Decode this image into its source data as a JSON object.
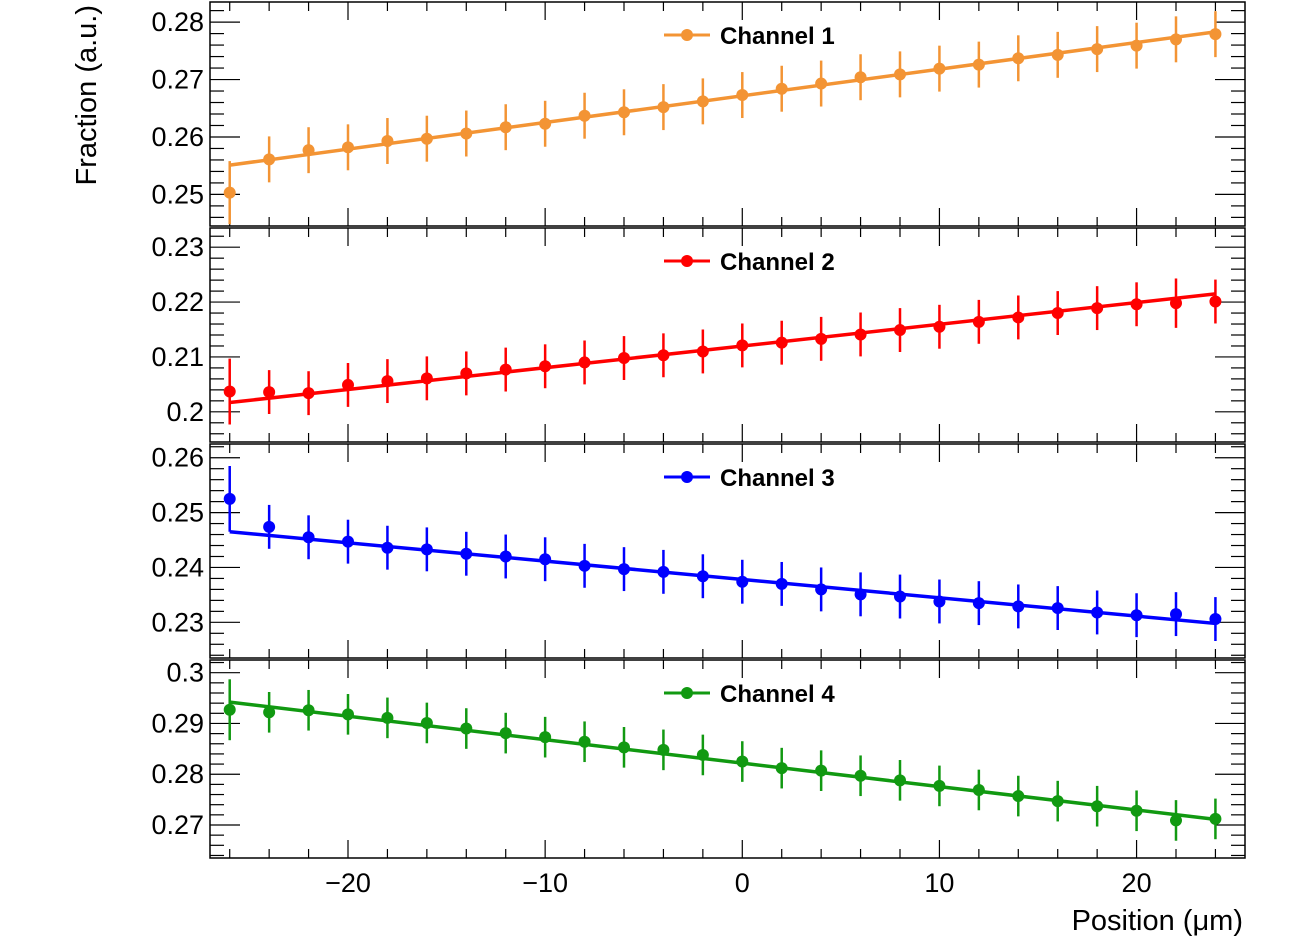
{
  "chart_data": {
    "type": "scatter",
    "layout": "stacked-panels",
    "shared_x": {
      "label": "Position (μm)",
      "range": [
        -27,
        25.5
      ],
      "ticks": [
        -20,
        -10,
        0,
        10,
        20
      ],
      "tick_labels": [
        "−20",
        "−10",
        "0",
        "10",
        "20"
      ]
    },
    "ylabel": "Fraction (a.u.)",
    "x": [
      -26,
      -24,
      -22,
      -20,
      -18,
      -16,
      -14,
      -12,
      -10,
      -8,
      -6,
      -4,
      -2,
      0,
      2,
      4,
      6,
      8,
      10,
      12,
      14,
      16,
      18,
      20,
      22,
      24
    ],
    "panels": [
      {
        "name": "Channel 1",
        "color": "#f39434",
        "ylim": [
          0.2445,
          0.2835
        ],
        "yticks": [
          0.25,
          0.26,
          0.27,
          0.28
        ],
        "ytick_labels": [
          "0.25",
          "0.26",
          "0.27",
          "0.28"
        ],
        "values": [
          0.2503,
          0.2561,
          0.2577,
          0.2582,
          0.2593,
          0.2597,
          0.2606,
          0.2617,
          0.2623,
          0.2637,
          0.2643,
          0.2652,
          0.2662,
          0.2673,
          0.2684,
          0.2693,
          0.2704,
          0.2709,
          0.2719,
          0.2726,
          0.2737,
          0.2743,
          0.2753,
          0.2759,
          0.277,
          0.2779
        ],
        "errors": [
          0.0055,
          0.004,
          0.004,
          0.004,
          0.004,
          0.004,
          0.004,
          0.004,
          0.004,
          0.004,
          0.004,
          0.004,
          0.004,
          0.004,
          0.004,
          0.004,
          0.004,
          0.004,
          0.004,
          0.004,
          0.004,
          0.004,
          0.004,
          0.004,
          0.004,
          0.004
        ],
        "fit": {
          "x": [
            -26,
            24
          ],
          "y": [
            0.2551,
            0.2783
          ]
        },
        "legend": "Channel 1"
      },
      {
        "name": "Channel 2",
        "color": "#ff0000",
        "ylim": [
          0.1945,
          0.2335
        ],
        "yticks": [
          0.2,
          0.21,
          0.22,
          0.23
        ],
        "ytick_labels": [
          "0.2",
          "0.21",
          "0.22",
          "0.23"
        ],
        "values": [
          0.2037,
          0.2036,
          0.2034,
          0.2049,
          0.2056,
          0.2061,
          0.207,
          0.2077,
          0.2083,
          0.209,
          0.2098,
          0.2103,
          0.211,
          0.2121,
          0.2126,
          0.2133,
          0.2141,
          0.2149,
          0.2155,
          0.2164,
          0.2172,
          0.218,
          0.2189,
          0.2196,
          0.2198,
          0.2201
        ],
        "errors": [
          0.006,
          0.004,
          0.004,
          0.004,
          0.004,
          0.004,
          0.004,
          0.004,
          0.004,
          0.004,
          0.004,
          0.004,
          0.004,
          0.004,
          0.004,
          0.004,
          0.004,
          0.004,
          0.004,
          0.004,
          0.004,
          0.004,
          0.004,
          0.004,
          0.0045,
          0.004
        ],
        "fit": {
          "x": [
            -26,
            24
          ],
          "y": [
            0.2017,
            0.2215
          ]
        },
        "legend": "Channel 2"
      },
      {
        "name": "Channel 3",
        "color": "#0000ff",
        "ylim": [
          0.2235,
          0.2625
        ],
        "yticks": [
          0.23,
          0.24,
          0.25,
          0.26
        ],
        "ytick_labels": [
          "0.23",
          "0.24",
          "0.25",
          "0.26"
        ],
        "values": [
          0.2525,
          0.2474,
          0.2455,
          0.2447,
          0.2436,
          0.2433,
          0.2425,
          0.242,
          0.2415,
          0.2403,
          0.2397,
          0.2392,
          0.2384,
          0.2374,
          0.237,
          0.236,
          0.2351,
          0.2347,
          0.2338,
          0.2335,
          0.2329,
          0.2326,
          0.2318,
          0.2313,
          0.2315,
          0.2306
        ],
        "errors": [
          0.006,
          0.004,
          0.004,
          0.004,
          0.004,
          0.004,
          0.004,
          0.004,
          0.004,
          0.004,
          0.004,
          0.004,
          0.004,
          0.004,
          0.004,
          0.004,
          0.004,
          0.004,
          0.004,
          0.004,
          0.004,
          0.004,
          0.004,
          0.004,
          0.004,
          0.004
        ],
        "fit": {
          "x": [
            -26,
            24
          ],
          "y": [
            0.2465,
            0.2298
          ]
        },
        "legend": "Channel 3"
      },
      {
        "name": "Channel 4",
        "color": "#119911",
        "ylim": [
          0.2635,
          0.3025
        ],
        "yticks": [
          0.27,
          0.28,
          0.29,
          0.3
        ],
        "ytick_labels": [
          "0.27",
          "0.28",
          "0.29",
          "0.3"
        ],
        "values": [
          0.2927,
          0.2922,
          0.2926,
          0.2918,
          0.2911,
          0.2901,
          0.289,
          0.2881,
          0.2873,
          0.2864,
          0.2853,
          0.2848,
          0.2838,
          0.2825,
          0.2812,
          0.2807,
          0.2797,
          0.2788,
          0.2777,
          0.2769,
          0.2757,
          0.2747,
          0.2737,
          0.2728,
          0.2709,
          0.2712
        ],
        "errors": [
          0.006,
          0.004,
          0.004,
          0.004,
          0.004,
          0.004,
          0.004,
          0.004,
          0.004,
          0.004,
          0.004,
          0.004,
          0.004,
          0.004,
          0.004,
          0.004,
          0.004,
          0.004,
          0.004,
          0.004,
          0.004,
          0.004,
          0.004,
          0.004,
          0.004,
          0.004
        ],
        "fit": {
          "x": [
            -26,
            24
          ],
          "y": [
            0.2942,
            0.2711
          ]
        },
        "legend": "Channel 4"
      }
    ]
  }
}
